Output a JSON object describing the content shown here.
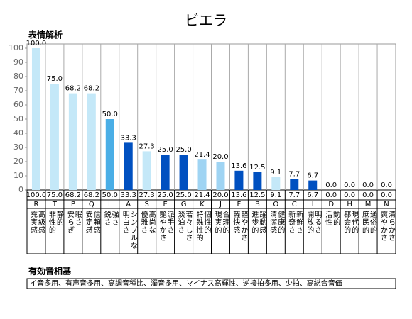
{
  "chart_data": {
    "type": "bar",
    "title": "ビエラ",
    "subtitle": "表情解析",
    "categories": [
      "R",
      "T",
      "P",
      "Q",
      "L",
      "A",
      "S",
      "E",
      "G",
      "K",
      "J",
      "F",
      "B",
      "O",
      "C",
      "I",
      "D",
      "H",
      "M",
      "N"
    ],
    "values": [
      100,
      75,
      68.2,
      68.2,
      50,
      33.3,
      27.3,
      25,
      25,
      21.4,
      20,
      13.6,
      12.5,
      9.1,
      7.7,
      6.7,
      0,
      0,
      0,
      0
    ],
    "value_labels": [
      "100.0",
      "75.0",
      "68.2",
      "68.2",
      "50.0",
      "33.3",
      "27.3",
      "25.0",
      "25.0",
      "21.4",
      "20.0",
      "13.6",
      "12.5",
      "9.1",
      "7.7",
      "6.7",
      "0.0",
      "0.0",
      "0.0",
      "0.0"
    ],
    "colors": [
      "#c4e8f8",
      "#c4e8f8",
      "#c4e8f8",
      "#c4e8f8",
      "#4aaee6",
      "#0050c0",
      "#c4e8f8",
      "#0050c0",
      "#0050c0",
      "#9fd4f3",
      "#9fd4f3",
      "#0050c0",
      "#0050c0",
      "#c4e8f8",
      "#0050c0",
      "#0050c0",
      "#c4e8f8",
      "#c4e8f8",
      "#c4e8f8",
      "#c4e8f8"
    ],
    "descriptions": [
      [
        "高級感",
        "充実感"
      ],
      [
        "静的",
        "非性的"
      ],
      [
        "眠さ",
        "安らぎ"
      ],
      [
        "信頼感",
        "安定感"
      ],
      [
        "強さ",
        "鋭さ"
      ],
      [
        "シンプルな",
        "明白さ"
      ],
      [
        "高尚な",
        "優雅さ"
      ],
      [
        "派手さ",
        "艶やかさ"
      ],
      [
        "若々しさ",
        "淡泊さ"
      ],
      [
        "個性的",
        "特殊性的"
      ],
      [
        "合理的",
        "現実的"
      ],
      [
        "軽やかさ",
        "軽快感"
      ],
      [
        "躍動感",
        "進歩的"
      ],
      [
        "健康的",
        "清潔感"
      ],
      [
        "新鮮さ",
        "新奇さ"
      ],
      [
        "明るさ",
        "開放的"
      ],
      [
        "動的",
        "活性"
      ],
      [
        "現代的",
        "都会的"
      ],
      [
        "通俗的",
        "庶民的"
      ],
      [
        "清らかさ",
        "爽やかさ"
      ]
    ],
    "ylim": [
      0,
      100
    ],
    "yticks": [
      0,
      10,
      20,
      30,
      40,
      50,
      60,
      70,
      80,
      90,
      100
    ]
  },
  "footer": {
    "title": "有効音相基",
    "text": "イ音多用、有声音多用、高調音種比、濁音多用、マイナス高輝性、逆接拍多用、少拍、高総合音価"
  }
}
